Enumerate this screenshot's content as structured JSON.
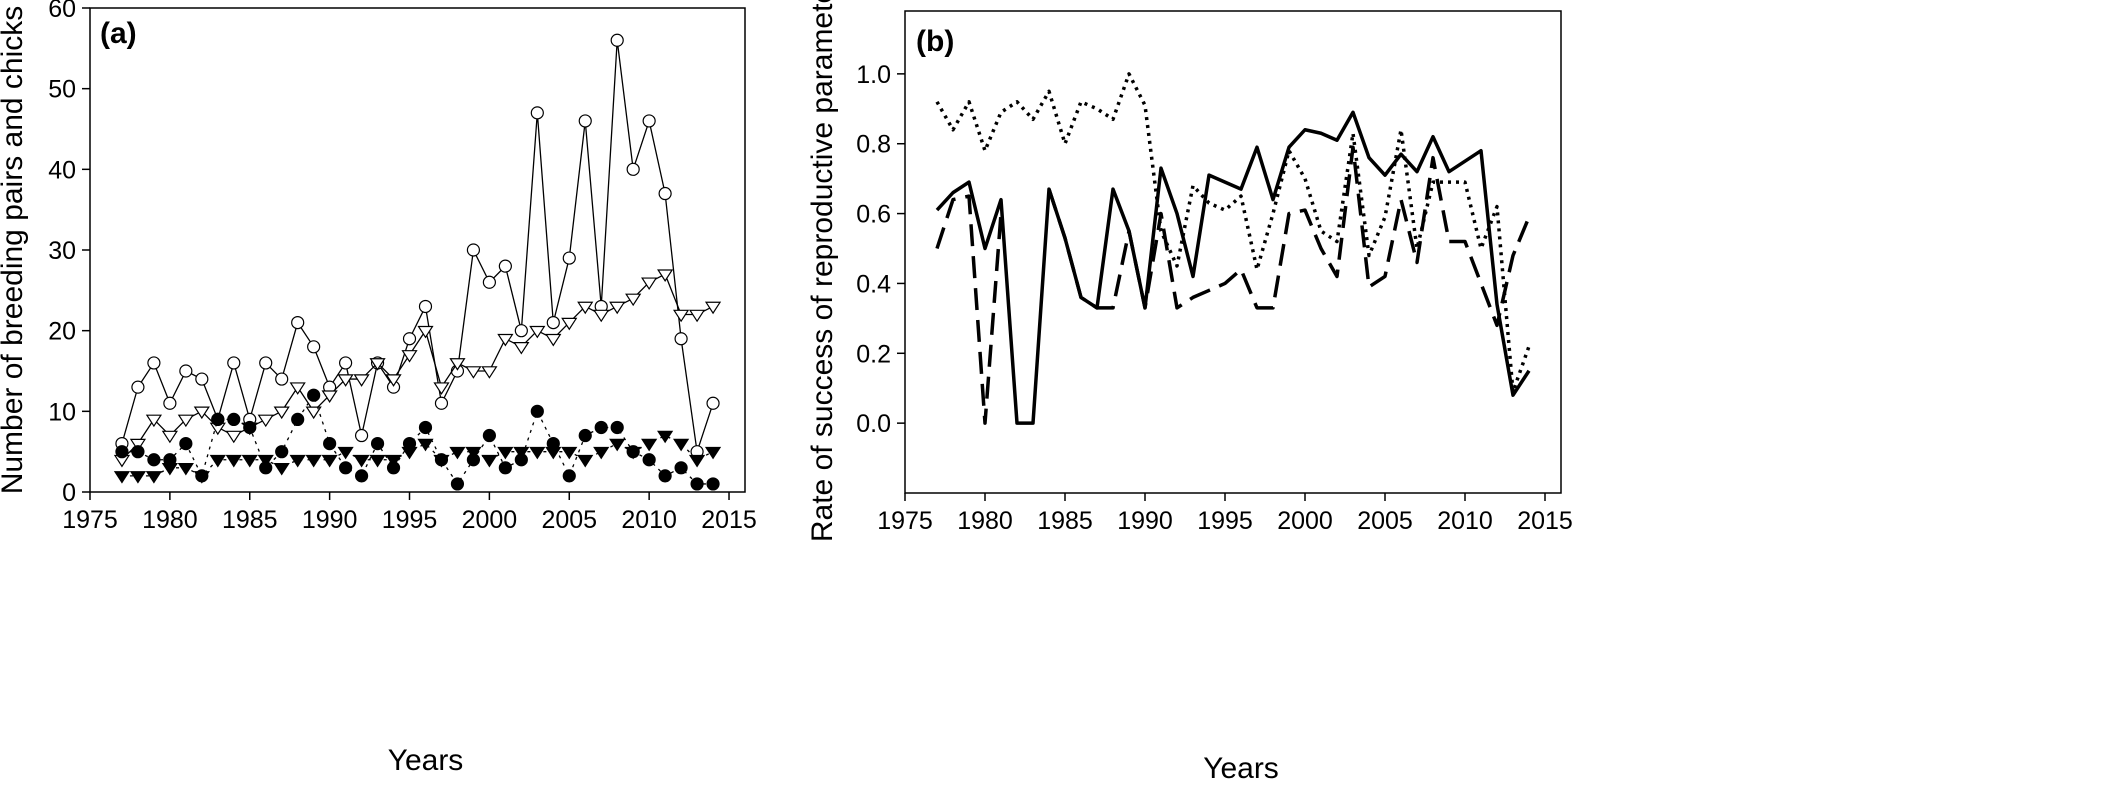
{
  "chart_data": [
    {
      "panel_label": "(a)",
      "type": "line",
      "title": "",
      "xlabel": "Years",
      "ylabel": "Number of breeding pairs and chicks",
      "xlim": [
        1975,
        2016
      ],
      "ylim": [
        0,
        60
      ],
      "xticks": [
        1975,
        1980,
        1985,
        1990,
        1995,
        2000,
        2005,
        2010,
        2015
      ],
      "yticks": [
        0,
        10,
        20,
        30,
        40,
        50,
        60
      ],
      "grid": false,
      "legend": "none",
      "series": [
        {
          "name": "open circles",
          "line": "solid",
          "marker": "circle-open",
          "x": [
            1977,
            1978,
            1979,
            1980,
            1981,
            1982,
            1983,
            1984,
            1985,
            1986,
            1987,
            1988,
            1989,
            1990,
            1991,
            1992,
            1993,
            1994,
            1995,
            1996,
            1997,
            1998,
            1999,
            2000,
            2001,
            2002,
            2003,
            2004,
            2005,
            2006,
            2007,
            2008,
            2009,
            2010,
            2011,
            2012,
            2013,
            2014
          ],
          "values": [
            6,
            13,
            16,
            11,
            15,
            14,
            9,
            16,
            9,
            16,
            14,
            21,
            18,
            13,
            16,
            7,
            16,
            13,
            19,
            23,
            11,
            15,
            30,
            26,
            28,
            20,
            47,
            21,
            29,
            46,
            23,
            56,
            40,
            46,
            37,
            19,
            5,
            11
          ]
        },
        {
          "name": "open triangles",
          "line": "solid",
          "marker": "triangle-down-open",
          "x": [
            1977,
            1978,
            1979,
            1980,
            1981,
            1982,
            1983,
            1984,
            1985,
            1986,
            1987,
            1988,
            1989,
            1990,
            1991,
            1992,
            1993,
            1994,
            1995,
            1996,
            1997,
            1998,
            1999,
            2000,
            2001,
            2002,
            2003,
            2004,
            2005,
            2006,
            2007,
            2008,
            2009,
            2010,
            2011,
            2012,
            2013,
            2014
          ],
          "values": [
            4,
            6,
            9,
            7,
            9,
            10,
            8,
            7,
            8,
            9,
            10,
            13,
            10,
            12,
            14,
            14,
            16,
            14,
            17,
            20,
            13,
            16,
            15,
            15,
            19,
            18,
            20,
            19,
            21,
            23,
            22,
            23,
            24,
            26,
            27,
            22,
            22,
            23
          ]
        },
        {
          "name": "filled circles",
          "line": "dotted",
          "marker": "circle-filled",
          "x": [
            1977,
            1978,
            1979,
            1980,
            1981,
            1982,
            1983,
            1984,
            1985,
            1986,
            1987,
            1988,
            1989,
            1990,
            1991,
            1992,
            1993,
            1994,
            1995,
            1996,
            1997,
            1998,
            1999,
            2000,
            2001,
            2002,
            2003,
            2004,
            2005,
            2006,
            2007,
            2008,
            2009,
            2010,
            2011,
            2012,
            2013,
            2014
          ],
          "values": [
            5,
            5,
            4,
            4,
            6,
            2,
            9,
            9,
            8,
            3,
            5,
            9,
            12,
            6,
            3,
            2,
            6,
            3,
            6,
            8,
            4,
            1,
            4,
            7,
            3,
            4,
            10,
            6,
            2,
            7,
            8,
            8,
            5,
            4,
            2,
            3,
            1,
            1
          ]
        },
        {
          "name": "filled triangles",
          "line": "dotted",
          "marker": "triangle-down-filled",
          "x": [
            1977,
            1978,
            1979,
            1980,
            1981,
            1982,
            1983,
            1984,
            1985,
            1986,
            1987,
            1988,
            1989,
            1990,
            1991,
            1992,
            1993,
            1994,
            1995,
            1996,
            1997,
            1998,
            1999,
            2000,
            2001,
            2002,
            2003,
            2004,
            2005,
            2006,
            2007,
            2008,
            2009,
            2010,
            2011,
            2012,
            2013,
            2014
          ],
          "values": [
            2,
            2,
            2,
            3,
            3,
            2,
            4,
            4,
            4,
            4,
            3,
            4,
            4,
            4,
            5,
            4,
            4,
            4,
            5,
            6,
            4,
            5,
            5,
            4,
            5,
            5,
            5,
            5,
            5,
            4,
            5,
            6,
            5,
            6,
            7,
            6,
            4,
            5
          ]
        }
      ]
    },
    {
      "panel_label": "(b)",
      "type": "line",
      "title": "",
      "xlabel": "Years",
      "ylabel": "Rate of success of reproductive parameters",
      "xlim": [
        1975,
        2016
      ],
      "ylim": [
        -0.2,
        1.18
      ],
      "xticks": [
        1975,
        1980,
        1985,
        1990,
        1995,
        2000,
        2005,
        2010,
        2015
      ],
      "yticks": [
        "0.0",
        "0.2",
        "0.4",
        "0.6",
        "0.8",
        "1.0"
      ],
      "grid": false,
      "legend": "none",
      "series": [
        {
          "name": "solid line",
          "line": "solid",
          "x": [
            1977,
            1978,
            1979,
            1980,
            1981,
            1982,
            1983,
            1984,
            1985,
            1986,
            1987,
            1988,
            1989,
            1990,
            1991,
            1992,
            1993,
            1994,
            1995,
            1996,
            1997,
            1998,
            1999,
            2000,
            2001,
            2002,
            2003,
            2004,
            2005,
            2006,
            2007,
            2008,
            2009,
            2010,
            2011,
            2012,
            2013,
            2014
          ],
          "values": [
            0.61,
            0.66,
            0.69,
            0.5,
            0.64,
            0.0,
            0.0,
            0.67,
            0.53,
            0.36,
            0.33,
            0.67,
            0.55,
            0.33,
            0.73,
            0.6,
            0.42,
            0.71,
            0.69,
            0.67,
            0.79,
            0.64,
            0.79,
            0.84,
            0.83,
            0.81,
            0.89,
            0.76,
            0.71,
            0.77,
            0.72,
            0.82,
            0.72,
            0.75,
            0.78,
            0.34,
            0.08,
            0.15
          ]
        },
        {
          "name": "dashed line",
          "line": "dashed",
          "x": [
            1977,
            1978,
            1979,
            1980,
            1981,
            1982,
            1983,
            1984,
            1985,
            1986,
            1987,
            1988,
            1989,
            1990,
            1991,
            1992,
            1993,
            1994,
            1995,
            1996,
            1997,
            1998,
            1999,
            2000,
            2001,
            2002,
            2003,
            2004,
            2005,
            2006,
            2007,
            2008,
            2009,
            2010,
            2011,
            2012,
            2013,
            2014
          ],
          "values": [
            0.5,
            0.64,
            0.65,
            0.0,
            0.6,
            null,
            null,
            0.67,
            0.53,
            0.36,
            0.33,
            0.33,
            0.55,
            0.33,
            0.6,
            0.33,
            0.36,
            0.38,
            0.4,
            0.44,
            0.33,
            0.33,
            0.6,
            0.61,
            0.5,
            0.42,
            0.79,
            0.39,
            0.42,
            0.64,
            0.46,
            0.76,
            0.52,
            0.52,
            0.4,
            0.28,
            0.48,
            0.59
          ]
        },
        {
          "name": "dotted line",
          "line": "dotted",
          "x": [
            1977,
            1978,
            1979,
            1980,
            1981,
            1982,
            1983,
            1984,
            1985,
            1986,
            1987,
            1988,
            1989,
            1990,
            1991,
            1992,
            1993,
            1994,
            1995,
            1996,
            1997,
            1998,
            1999,
            2000,
            2001,
            2002,
            2003,
            2004,
            2005,
            2006,
            2007,
            2008,
            2009,
            2010,
            2011,
            2012,
            2013,
            2014
          ],
          "values": [
            0.92,
            0.84,
            0.92,
            0.78,
            0.89,
            0.92,
            0.87,
            0.95,
            0.8,
            0.92,
            0.9,
            0.87,
            1.0,
            0.91,
            0.55,
            0.45,
            0.68,
            0.63,
            0.61,
            0.65,
            0.44,
            0.6,
            0.78,
            0.7,
            0.55,
            0.52,
            0.83,
            0.48,
            0.59,
            0.84,
            0.5,
            0.69,
            0.69,
            0.69,
            0.5,
            0.62,
            0.09,
            0.22
          ]
        }
      ]
    }
  ]
}
